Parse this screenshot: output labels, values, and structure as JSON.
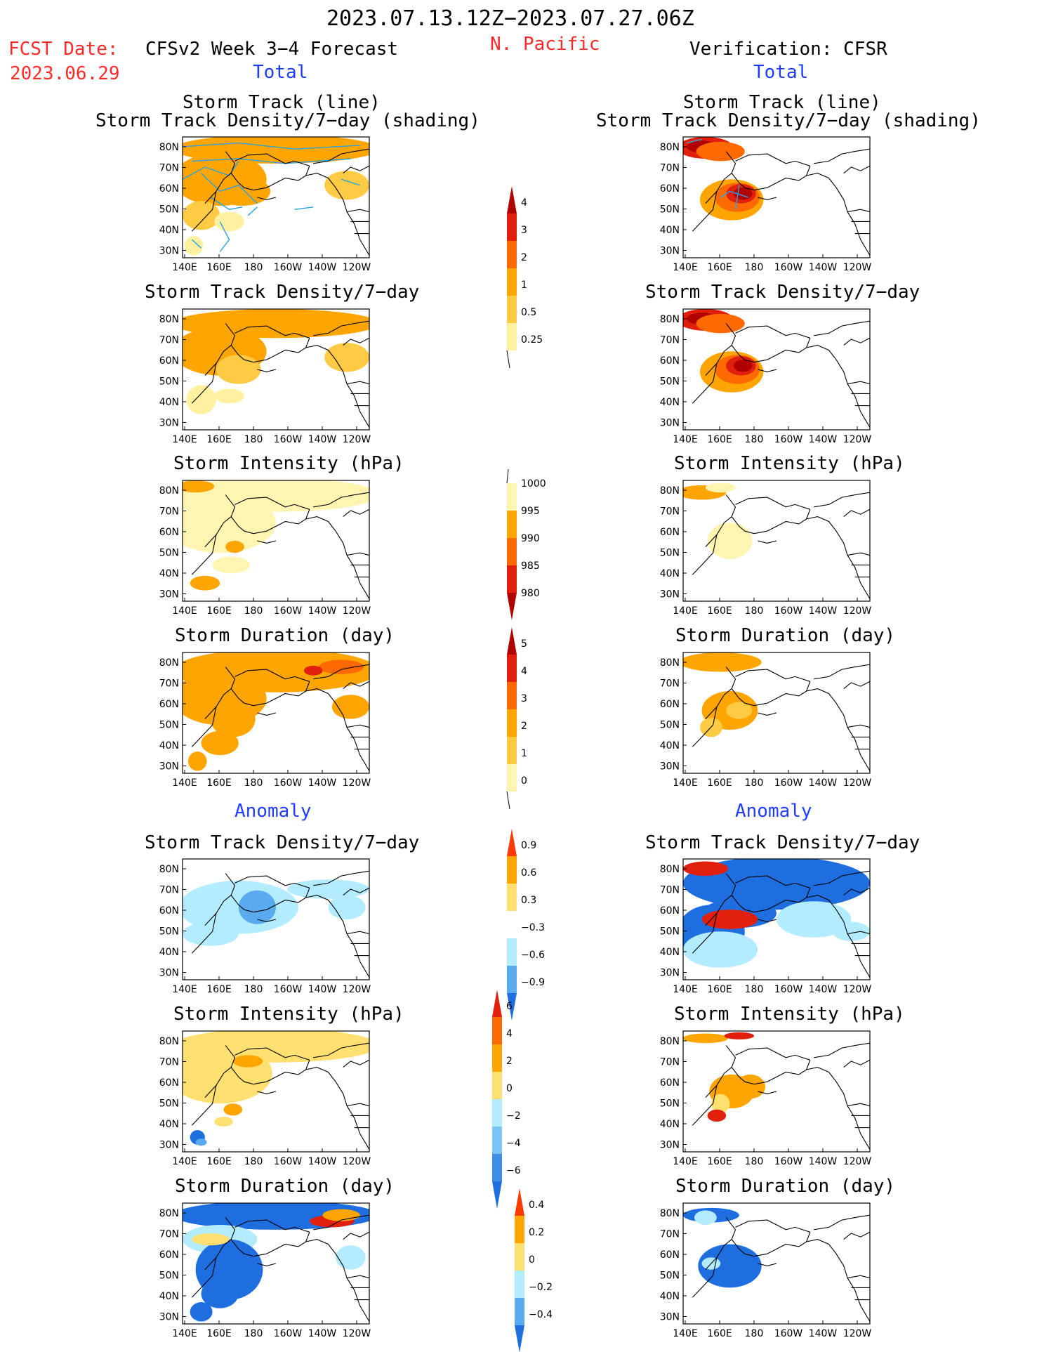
{
  "header": {
    "date_range": "2023.07.13.12Z−2023.07.27.06Z",
    "fcst_date_label": "FCST Date:",
    "fcst_date_value": "2023.06.29",
    "forecast_label": "CFSv2 Week 3−4 Forecast",
    "region": "N. Pacific",
    "verification_label": "Verification: CFSR",
    "total_left": "Total",
    "total_right": "Total",
    "anomaly_left": "Anomaly",
    "anomaly_right": "Anomaly"
  },
  "axis": {
    "lat_labels": [
      "80N",
      "70N",
      "60N",
      "50N",
      "40N",
      "30N"
    ],
    "lon_labels": [
      "140E",
      "160E",
      "180",
      "160W",
      "140W",
      "120W"
    ]
  },
  "panels": {
    "row1": {
      "title_line1": "Storm Track (line)",
      "title_line2": "Storm Track Density/7−day (shading)"
    },
    "row2": {
      "title": "Storm Track Density/7−day"
    },
    "row3": {
      "title": "Storm Intensity (hPa)"
    },
    "row4": {
      "title": "Storm Duration (day)"
    },
    "row5": {
      "title": "Storm Track Density/7−day"
    },
    "row6": {
      "title": "Storm Intensity (hPa)"
    },
    "row7": {
      "title": "Storm Duration (day)"
    }
  },
  "colorbars": {
    "density_total": {
      "labels": [
        "4",
        "3",
        "2",
        "1",
        "0.5",
        "0.25"
      ],
      "colors": [
        "#b00000",
        "#e0200c",
        "#ff6a00",
        "#ffa500",
        "#ffcb45",
        "#fff1a0"
      ]
    },
    "intensity_total": {
      "labels": [
        "1000",
        "995",
        "990",
        "985",
        "980"
      ],
      "colors": [
        "#fff4b0",
        "#ffa500",
        "#ff6a00",
        "#e0200c",
        "#b00000"
      ]
    },
    "duration_total": {
      "labels": [
        "5",
        "4",
        "3",
        "2",
        "1",
        "0"
      ],
      "colors": [
        "#b00000",
        "#e0200c",
        "#ff6a00",
        "#ffa500",
        "#ffcb45",
        "#fff4b0"
      ]
    },
    "density_anom": {
      "labels": [
        "0.9",
        "0.6",
        "0.3",
        "−0.3",
        "−0.6",
        "−0.9"
      ],
      "colors": [
        "#ff3a00",
        "#ffa500",
        "#ffe070",
        "#ffffff",
        "#b3ecff",
        "#5aaaf0",
        "#1f6ee0"
      ]
    },
    "intensity_anom": {
      "labels": [
        "6",
        "4",
        "2",
        "0",
        "−2",
        "−4",
        "−6"
      ],
      "colors": [
        "#e0200c",
        "#ff6a00",
        "#ffa500",
        "#ffe070",
        "#b3ecff",
        "#7cc4f5",
        "#3c8ee8",
        "#1f6ee0"
      ]
    },
    "duration_anom": {
      "labels": [
        "0.4",
        "0.2",
        "0",
        "−0.2",
        "−0.4"
      ],
      "colors": [
        "#ff3a00",
        "#ffa500",
        "#ffe070",
        "#b3ecff",
        "#5aaaf0",
        "#1f6ee0"
      ]
    }
  }
}
